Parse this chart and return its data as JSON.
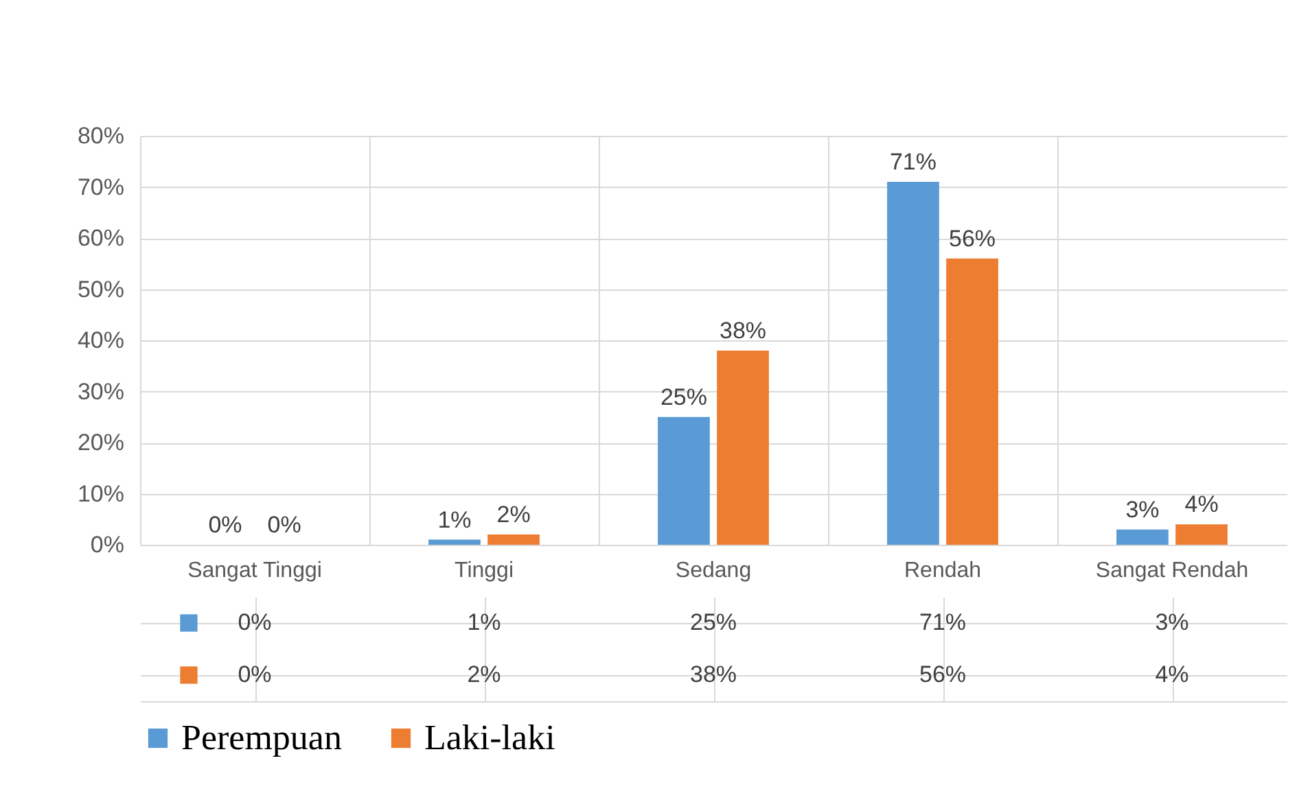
{
  "chart_data": {
    "type": "bar",
    "categories": [
      "Sangat Tinggi",
      "Tinggi",
      "Sedang",
      "Rendah",
      "Sangat Rendah"
    ],
    "series": [
      {
        "name": "Perempuan",
        "color": "#5b9bd5",
        "values": [
          0,
          1,
          25,
          71,
          3
        ],
        "value_labels": [
          "0%",
          "1%",
          "25%",
          "71%",
          "3%"
        ]
      },
      {
        "name": "Laki-laki",
        "color": "#ed7d31",
        "values": [
          0,
          2,
          38,
          56,
          4
        ],
        "value_labels": [
          "0%",
          "2%",
          "38%",
          "56%",
          "4%"
        ]
      }
    ],
    "ylim": [
      0,
      80
    ],
    "yticks": [
      {
        "value": 0,
        "label": "0%"
      },
      {
        "value": 10,
        "label": "10%"
      },
      {
        "value": 20,
        "label": "20%"
      },
      {
        "value": 30,
        "label": "30%"
      },
      {
        "value": 40,
        "label": "40%"
      },
      {
        "value": 50,
        "label": "50%"
      },
      {
        "value": 60,
        "label": "60%"
      },
      {
        "value": 70,
        "label": "70%"
      },
      {
        "value": 80,
        "label": "80%"
      }
    ],
    "grid": "y",
    "legend": "bottom"
  }
}
